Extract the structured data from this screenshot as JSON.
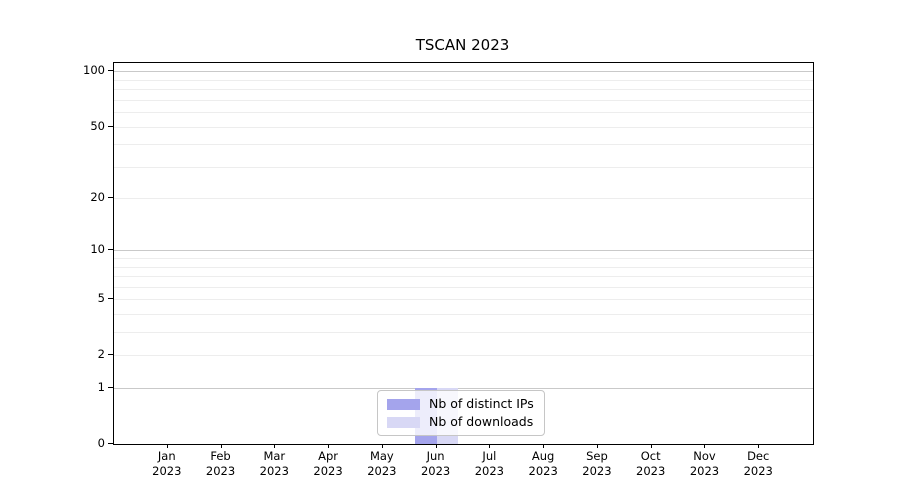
{
  "chart_data": {
    "type": "bar",
    "title": "TSCAN 2023",
    "categories": [
      "Jan",
      "Feb",
      "Mar",
      "Apr",
      "May",
      "Jun",
      "Jul",
      "Aug",
      "Sep",
      "Oct",
      "Nov",
      "Dec"
    ],
    "category_year": "2023",
    "series": [
      {
        "name": "Nb of distinct IPs",
        "color": "#a4a4ec",
        "values": [
          0,
          0,
          0,
          0,
          0,
          1,
          0,
          0,
          0,
          0,
          0,
          0
        ]
      },
      {
        "name": "Nb of downloads",
        "color": "#d8d8f5",
        "values": [
          0,
          0,
          0,
          0,
          0,
          1,
          0,
          0,
          0,
          0,
          0,
          0
        ]
      }
    ],
    "xlabel": "",
    "ylabel": "",
    "yscale": "log1p",
    "ylim": [
      0,
      111
    ],
    "ytick_labels": [
      0,
      1,
      2,
      5,
      10,
      20,
      50,
      100
    ],
    "y_major_gridlines": [
      1,
      10,
      100
    ],
    "y_minor_gridlines": [
      2,
      3,
      4,
      5,
      6,
      7,
      8,
      9,
      20,
      30,
      40,
      50,
      60,
      70,
      80,
      90
    ],
    "grid": true,
    "legend_position": "lower-center",
    "colors": {
      "axis": "#000000",
      "major_grid": "#c9c9c9",
      "minor_grid": "#ededed",
      "background": "#ffffff"
    }
  }
}
